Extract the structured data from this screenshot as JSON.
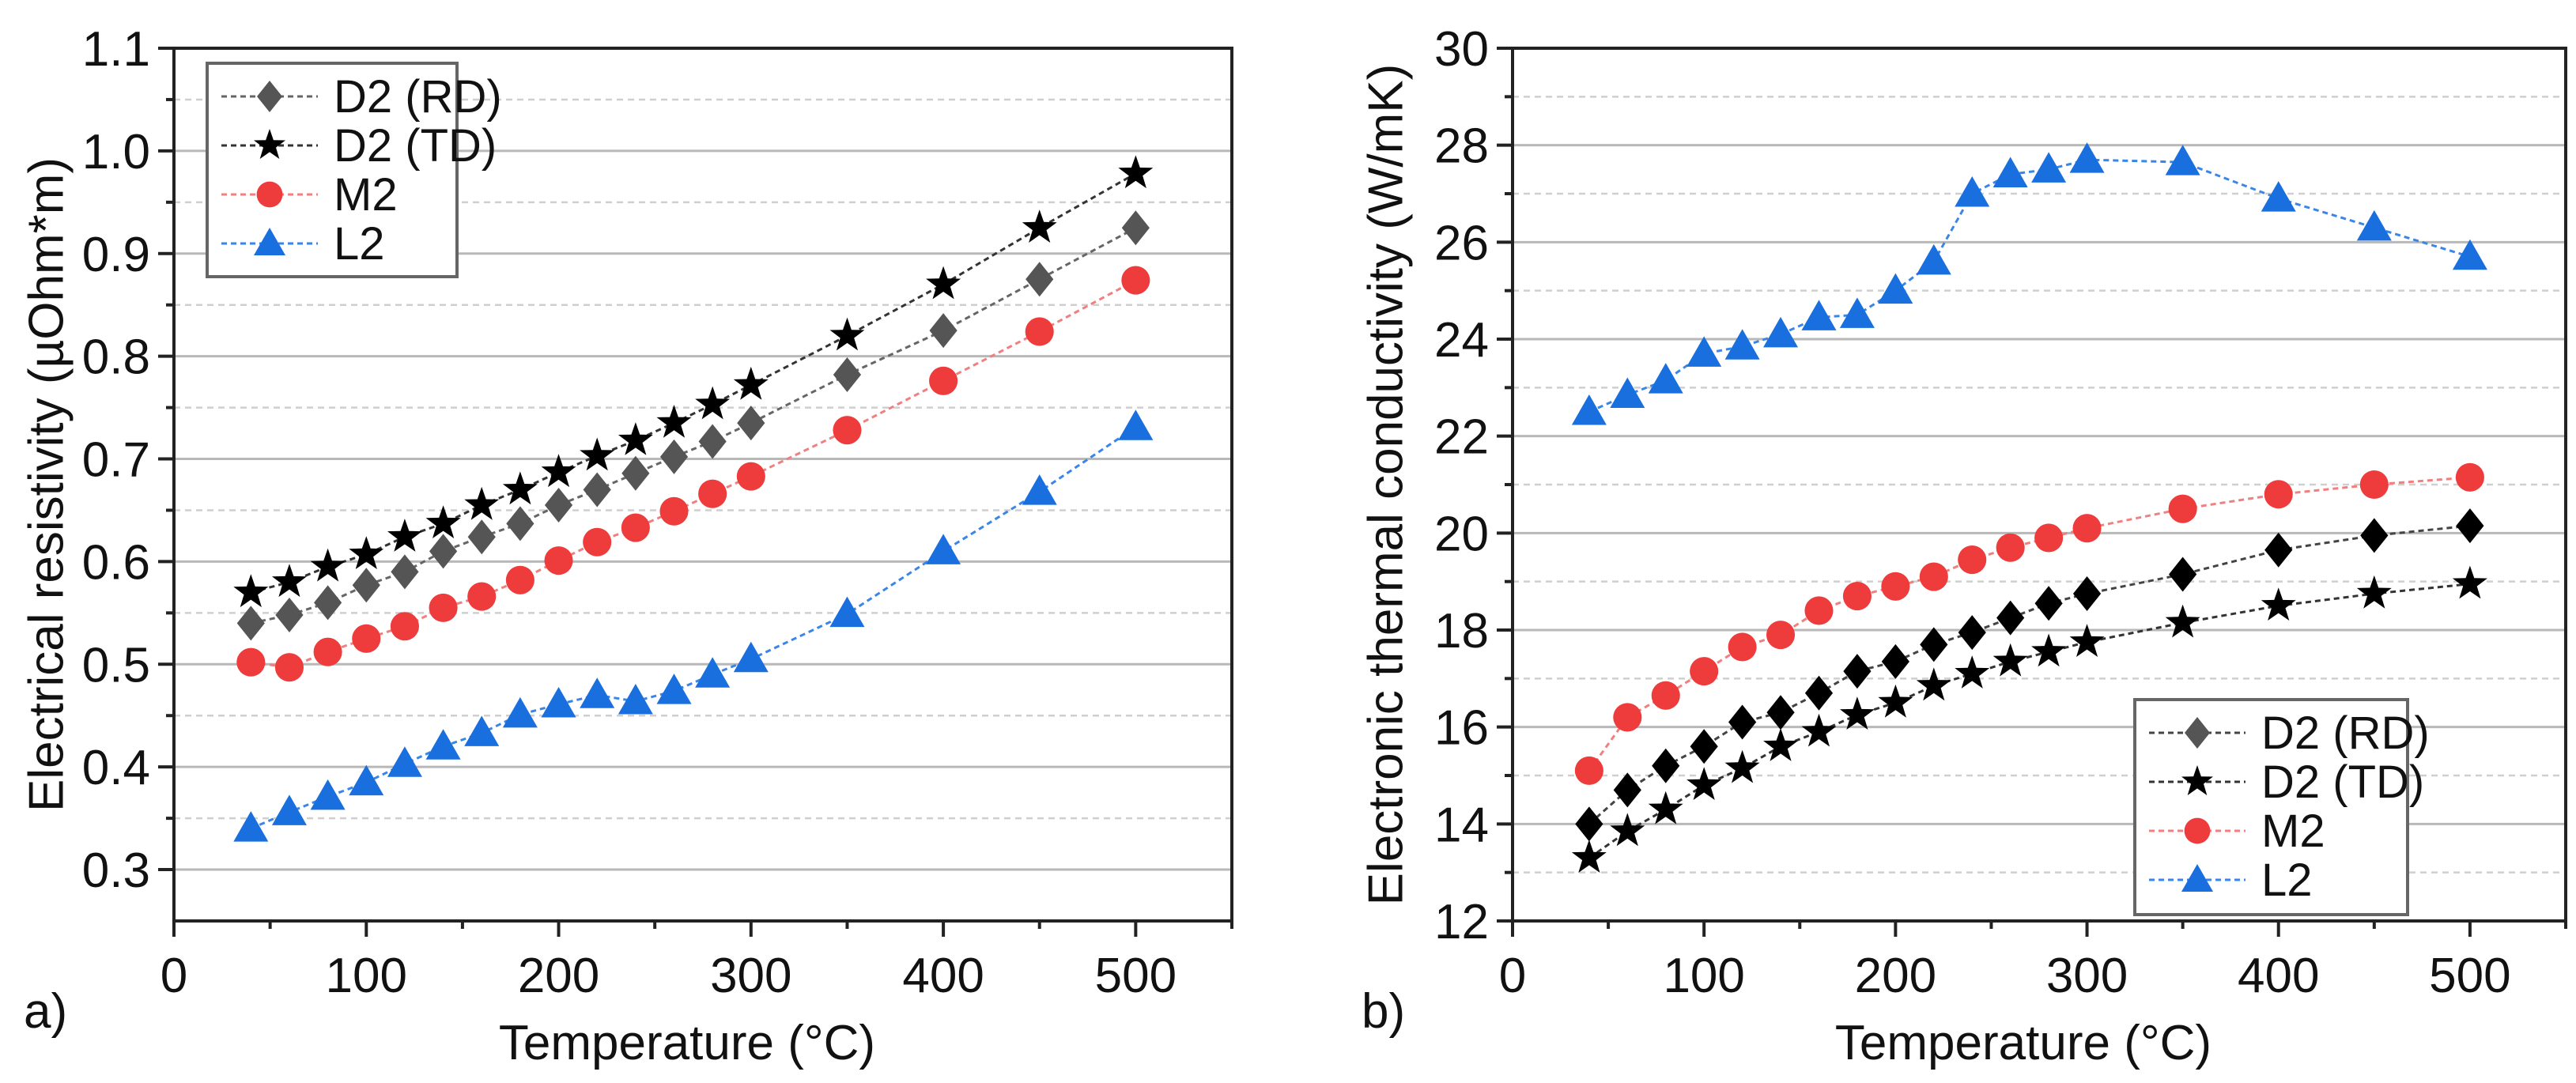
{
  "chart_data": [
    {
      "type": "line",
      "panel_label": "a)",
      "xlabel": "Temperature (°C)",
      "ylabel": "Electrical resistivity (µOhm*m)",
      "xlim": [
        0,
        550
      ],
      "ylim": [
        0.25,
        1.1
      ],
      "xticks": [
        0,
        100,
        200,
        300,
        400,
        500
      ],
      "xtick_labels": [
        "0",
        "100",
        "200",
        "300",
        "400",
        "500"
      ],
      "yticks": [
        0.3,
        0.4,
        0.5,
        0.6,
        0.7,
        0.8,
        0.9,
        1.0,
        1.1
      ],
      "ytick_labels": [
        "0.3",
        "0.4",
        "0.5",
        "0.6",
        "0.7",
        "0.8",
        "0.9",
        "1.0",
        "1.1"
      ],
      "ystep": 0.1,
      "grid": true,
      "legend_position": "top-left",
      "x": [
        40,
        60,
        80,
        100,
        120,
        140,
        160,
        180,
        200,
        220,
        240,
        260,
        280,
        300,
        350,
        400,
        450,
        500
      ],
      "series": [
        {
          "name": "D2 (RD)",
          "marker": "diamond",
          "color": "#555555",
          "line_color": "#666666",
          "values": [
            0.54,
            0.548,
            0.56,
            0.577,
            0.59,
            0.61,
            0.624,
            0.637,
            0.655,
            0.67,
            0.686,
            0.702,
            0.717,
            0.735,
            0.782,
            0.825,
            0.875,
            0.925
          ]
        },
        {
          "name": "D2 (TD)",
          "marker": "star",
          "color": "#000000",
          "line_color": "#333333",
          "values": [
            0.57,
            0.58,
            0.595,
            0.607,
            0.624,
            0.637,
            0.655,
            0.67,
            0.687,
            0.703,
            0.718,
            0.735,
            0.753,
            0.772,
            0.82,
            0.87,
            0.925,
            0.978
          ]
        },
        {
          "name": "M2",
          "marker": "circle",
          "color": "#ee3b3b",
          "line_color": "#f08080",
          "values": [
            0.502,
            0.497,
            0.512,
            0.525,
            0.537,
            0.555,
            0.566,
            0.582,
            0.601,
            0.619,
            0.633,
            0.649,
            0.666,
            0.683,
            0.728,
            0.776,
            0.824,
            0.874
          ]
        },
        {
          "name": "L2",
          "marker": "triangle",
          "color": "#1a6fdf",
          "line_color": "#3a86e8",
          "values": [
            0.34,
            0.356,
            0.371,
            0.385,
            0.403,
            0.42,
            0.433,
            0.451,
            0.461,
            0.47,
            0.464,
            0.474,
            0.49,
            0.505,
            0.549,
            0.61,
            0.668,
            0.731
          ]
        }
      ]
    },
    {
      "type": "line",
      "panel_label": "b)",
      "xlabel": "Temperature (°C)",
      "ylabel": "Electronic thermal conductivity (W/mK)",
      "xlim": [
        0,
        550
      ],
      "ylim": [
        12,
        30
      ],
      "xticks": [
        0,
        100,
        200,
        300,
        400,
        500
      ],
      "xtick_labels": [
        "0",
        "100",
        "200",
        "300",
        "400",
        "500"
      ],
      "yticks": [
        12,
        14,
        16,
        18,
        20,
        22,
        24,
        26,
        28,
        30
      ],
      "ytick_labels": [
        "12",
        "14",
        "16",
        "18",
        "20",
        "22",
        "24",
        "26",
        "28",
        "30"
      ],
      "ystep": 2,
      "grid": true,
      "legend_position": "bottom-right",
      "x": [
        40,
        60,
        80,
        100,
        120,
        140,
        160,
        180,
        200,
        220,
        240,
        260,
        280,
        300,
        350,
        400,
        450,
        500
      ],
      "series": [
        {
          "name": "D2 (RD)",
          "marker": "diamond",
          "color": "#000000",
          "legend_color": "#555555",
          "line_color": "#444444",
          "values": [
            14.0,
            14.7,
            15.2,
            15.6,
            16.1,
            16.3,
            16.7,
            17.15,
            17.35,
            17.7,
            17.95,
            18.25,
            18.55,
            18.75,
            19.15,
            19.65,
            19.95,
            20.15
          ]
        },
        {
          "name": "D2 (TD)",
          "marker": "star",
          "color": "#000000",
          "line_color": "#333333",
          "values": [
            13.3,
            13.85,
            14.3,
            14.8,
            15.15,
            15.6,
            15.9,
            16.25,
            16.5,
            16.85,
            17.1,
            17.35,
            17.55,
            17.75,
            18.15,
            18.5,
            18.75,
            18.95
          ]
        },
        {
          "name": "M2",
          "marker": "circle",
          "color": "#ee3b3b",
          "line_color": "#f08080",
          "values": [
            15.1,
            16.2,
            16.65,
            17.15,
            17.65,
            17.9,
            18.4,
            18.7,
            18.9,
            19.1,
            19.45,
            19.7,
            19.9,
            20.1,
            20.5,
            20.8,
            21.0,
            21.15
          ]
        },
        {
          "name": "L2",
          "marker": "triangle",
          "color": "#1a6fdf",
          "line_color": "#3a86e8",
          "values": [
            22.5,
            22.85,
            23.15,
            23.7,
            23.85,
            24.1,
            24.45,
            24.5,
            25.0,
            25.6,
            27.0,
            27.4,
            27.5,
            27.7,
            27.65,
            26.9,
            26.3,
            25.7
          ]
        }
      ]
    }
  ]
}
